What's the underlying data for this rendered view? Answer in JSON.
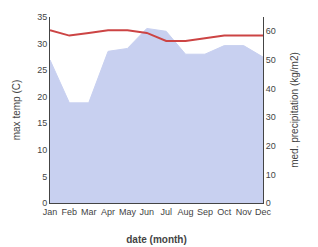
{
  "chart_data": {
    "type": "line",
    "categories": [
      "Jan",
      "Feb",
      "Mar",
      "Apr",
      "May",
      "Jun",
      "Jul",
      "Aug",
      "Sep",
      "Oct",
      "Nov",
      "Dec"
    ],
    "xlabel": "date (month)",
    "ylabel": "max temp (C)",
    "y2label": "med. precipitation (kg/m2)",
    "series": [
      {
        "type": "area",
        "axis": "y2",
        "color": "#c8d0f0",
        "values": [
          50,
          35,
          35,
          53,
          54,
          61,
          60,
          52,
          52,
          55,
          55,
          51
        ]
      },
      {
        "type": "line",
        "color": "#cc4444",
        "values": [
          32.5,
          31.5,
          32.0,
          32.5,
          32.5,
          32.0,
          30.5,
          30.5,
          31.0,
          31.5,
          31.5,
          31.5
        ]
      }
    ],
    "ylim": [
      0,
      35
    ],
    "yticks": [
      0,
      5,
      10,
      15,
      20,
      25,
      30,
      35
    ],
    "y2lim": [
      0,
      65
    ],
    "y2ticks": [
      0,
      10,
      20,
      30,
      40,
      50,
      60
    ],
    "grid": false
  }
}
